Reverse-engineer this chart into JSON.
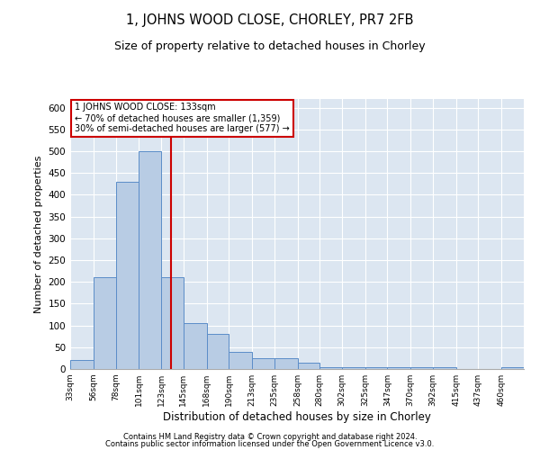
{
  "title": "1, JOHNS WOOD CLOSE, CHORLEY, PR7 2FB",
  "subtitle": "Size of property relative to detached houses in Chorley",
  "xlabel": "Distribution of detached houses by size in Chorley",
  "ylabel": "Number of detached properties",
  "footer_line1": "Contains HM Land Registry data © Crown copyright and database right 2024.",
  "footer_line2": "Contains public sector information licensed under the Open Government Licence v3.0.",
  "annotation_line1": "1 JOHNS WOOD CLOSE: 133sqm",
  "annotation_line2": "← 70% of detached houses are smaller (1,359)",
  "annotation_line3": "30% of semi-detached houses are larger (577) →",
  "property_size": 133,
  "bar_color": "#b8cce4",
  "bar_edge_color": "#5b8dc8",
  "vline_color": "#cc0000",
  "background_color": "#dce6f1",
  "grid_color": "#ffffff",
  "bins": [
    33,
    56,
    78,
    101,
    123,
    145,
    168,
    190,
    213,
    235,
    258,
    280,
    302,
    325,
    347,
    370,
    392,
    415,
    437,
    460,
    482
  ],
  "counts": [
    20,
    210,
    430,
    500,
    210,
    105,
    80,
    40,
    25,
    25,
    15,
    5,
    5,
    5,
    5,
    5,
    5,
    0,
    0,
    5
  ],
  "ylim": [
    0,
    620
  ],
  "yticks": [
    0,
    50,
    100,
    150,
    200,
    250,
    300,
    350,
    400,
    450,
    500,
    550,
    600
  ]
}
